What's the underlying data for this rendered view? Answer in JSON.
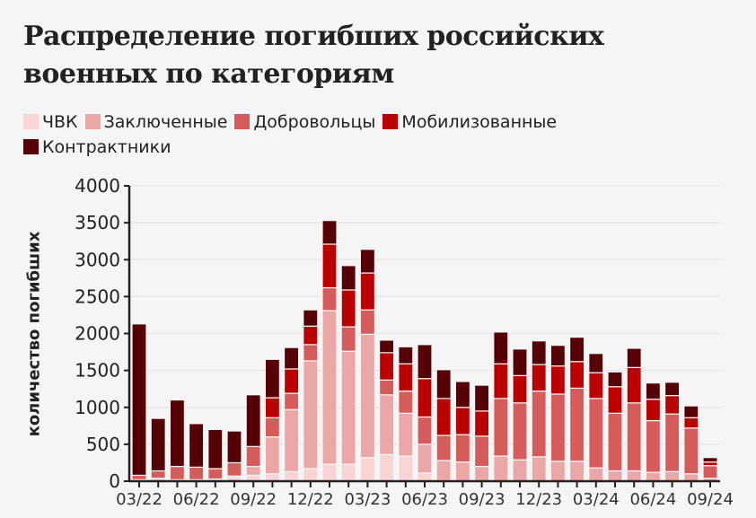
{
  "title": "Распределение погибших российских военных по категориям",
  "legend": [
    {
      "label": "ЧВК",
      "color": "#fad4d4"
    },
    {
      "label": "Заключенные",
      "color": "#eba6a6"
    },
    {
      "label": "Добровольцы",
      "color": "#d65b5b"
    },
    {
      "label": "Мобилизованные",
      "color": "#bb0000"
    },
    {
      "label": "Контрактники",
      "color": "#540004"
    }
  ],
  "chart_data": {
    "type": "bar",
    "stacked": true,
    "title": "Распределение погибших российских военных по категориям",
    "xlabel": "",
    "ylabel": "количество погибших",
    "ylim": [
      0,
      4000
    ],
    "yticks": [
      0,
      500,
      1000,
      1500,
      2000,
      2500,
      3000,
      3500,
      4000
    ],
    "xtick_labels": [
      "03/22",
      "06/22",
      "09/22",
      "12/22",
      "03/23",
      "06/23",
      "09/23",
      "12/23",
      "03/24",
      "06/24",
      "09/24"
    ],
    "grid": true,
    "legend_position": "top",
    "categories": [
      "03/22",
      "04/22",
      "05/22",
      "06/22",
      "07/22",
      "08/22",
      "09/22",
      "10/22",
      "11/22",
      "12/22",
      "01/23",
      "02/23",
      "03/23",
      "04/23",
      "05/23",
      "06/23",
      "07/23",
      "08/23",
      "09/23",
      "10/23",
      "11/23",
      "12/23",
      "01/24",
      "02/24",
      "03/24",
      "04/24",
      "05/24",
      "06/24",
      "07/24",
      "08/24",
      "09/24"
    ],
    "series": [
      {
        "name": "ЧВК",
        "color": "#fad4d4",
        "values": [
          20,
          40,
          20,
          20,
          30,
          50,
          80,
          100,
          130,
          170,
          230,
          230,
          320,
          360,
          340,
          110,
          10,
          0,
          0,
          0,
          0,
          0,
          0,
          0,
          0,
          0,
          0,
          0,
          0,
          0,
          0
        ]
      },
      {
        "name": "Заключенные",
        "color": "#eba6a6",
        "values": [
          0,
          0,
          0,
          0,
          0,
          20,
          120,
          500,
          840,
          1460,
          2080,
          1530,
          1670,
          810,
          580,
          390,
          270,
          260,
          200,
          340,
          290,
          330,
          270,
          270,
          180,
          140,
          140,
          120,
          130,
          100,
          40
        ]
      },
      {
        "name": "Добровольцы",
        "color": "#d65b5b",
        "values": [
          60,
          100,
          180,
          170,
          140,
          180,
          270,
          260,
          220,
          220,
          310,
          330,
          330,
          200,
          300,
          370,
          340,
          370,
          410,
          780,
          770,
          890,
          910,
          990,
          940,
          780,
          920,
          700,
          780,
          620,
          170
        ]
      },
      {
        "name": "Мобилизованные",
        "color": "#bb0000",
        "values": [
          0,
          0,
          0,
          0,
          0,
          0,
          0,
          270,
          330,
          250,
          590,
          500,
          500,
          370,
          370,
          520,
          500,
          370,
          340,
          470,
          370,
          360,
          380,
          360,
          350,
          360,
          480,
          290,
          250,
          140,
          50
        ]
      },
      {
        "name": "Контрактники",
        "color": "#540004",
        "values": [
          2050,
          710,
          900,
          590,
          530,
          430,
          700,
          520,
          290,
          220,
          320,
          330,
          320,
          170,
          230,
          460,
          390,
          350,
          350,
          430,
          360,
          320,
          280,
          330,
          260,
          200,
          260,
          220,
          180,
          160,
          60
        ]
      }
    ]
  }
}
